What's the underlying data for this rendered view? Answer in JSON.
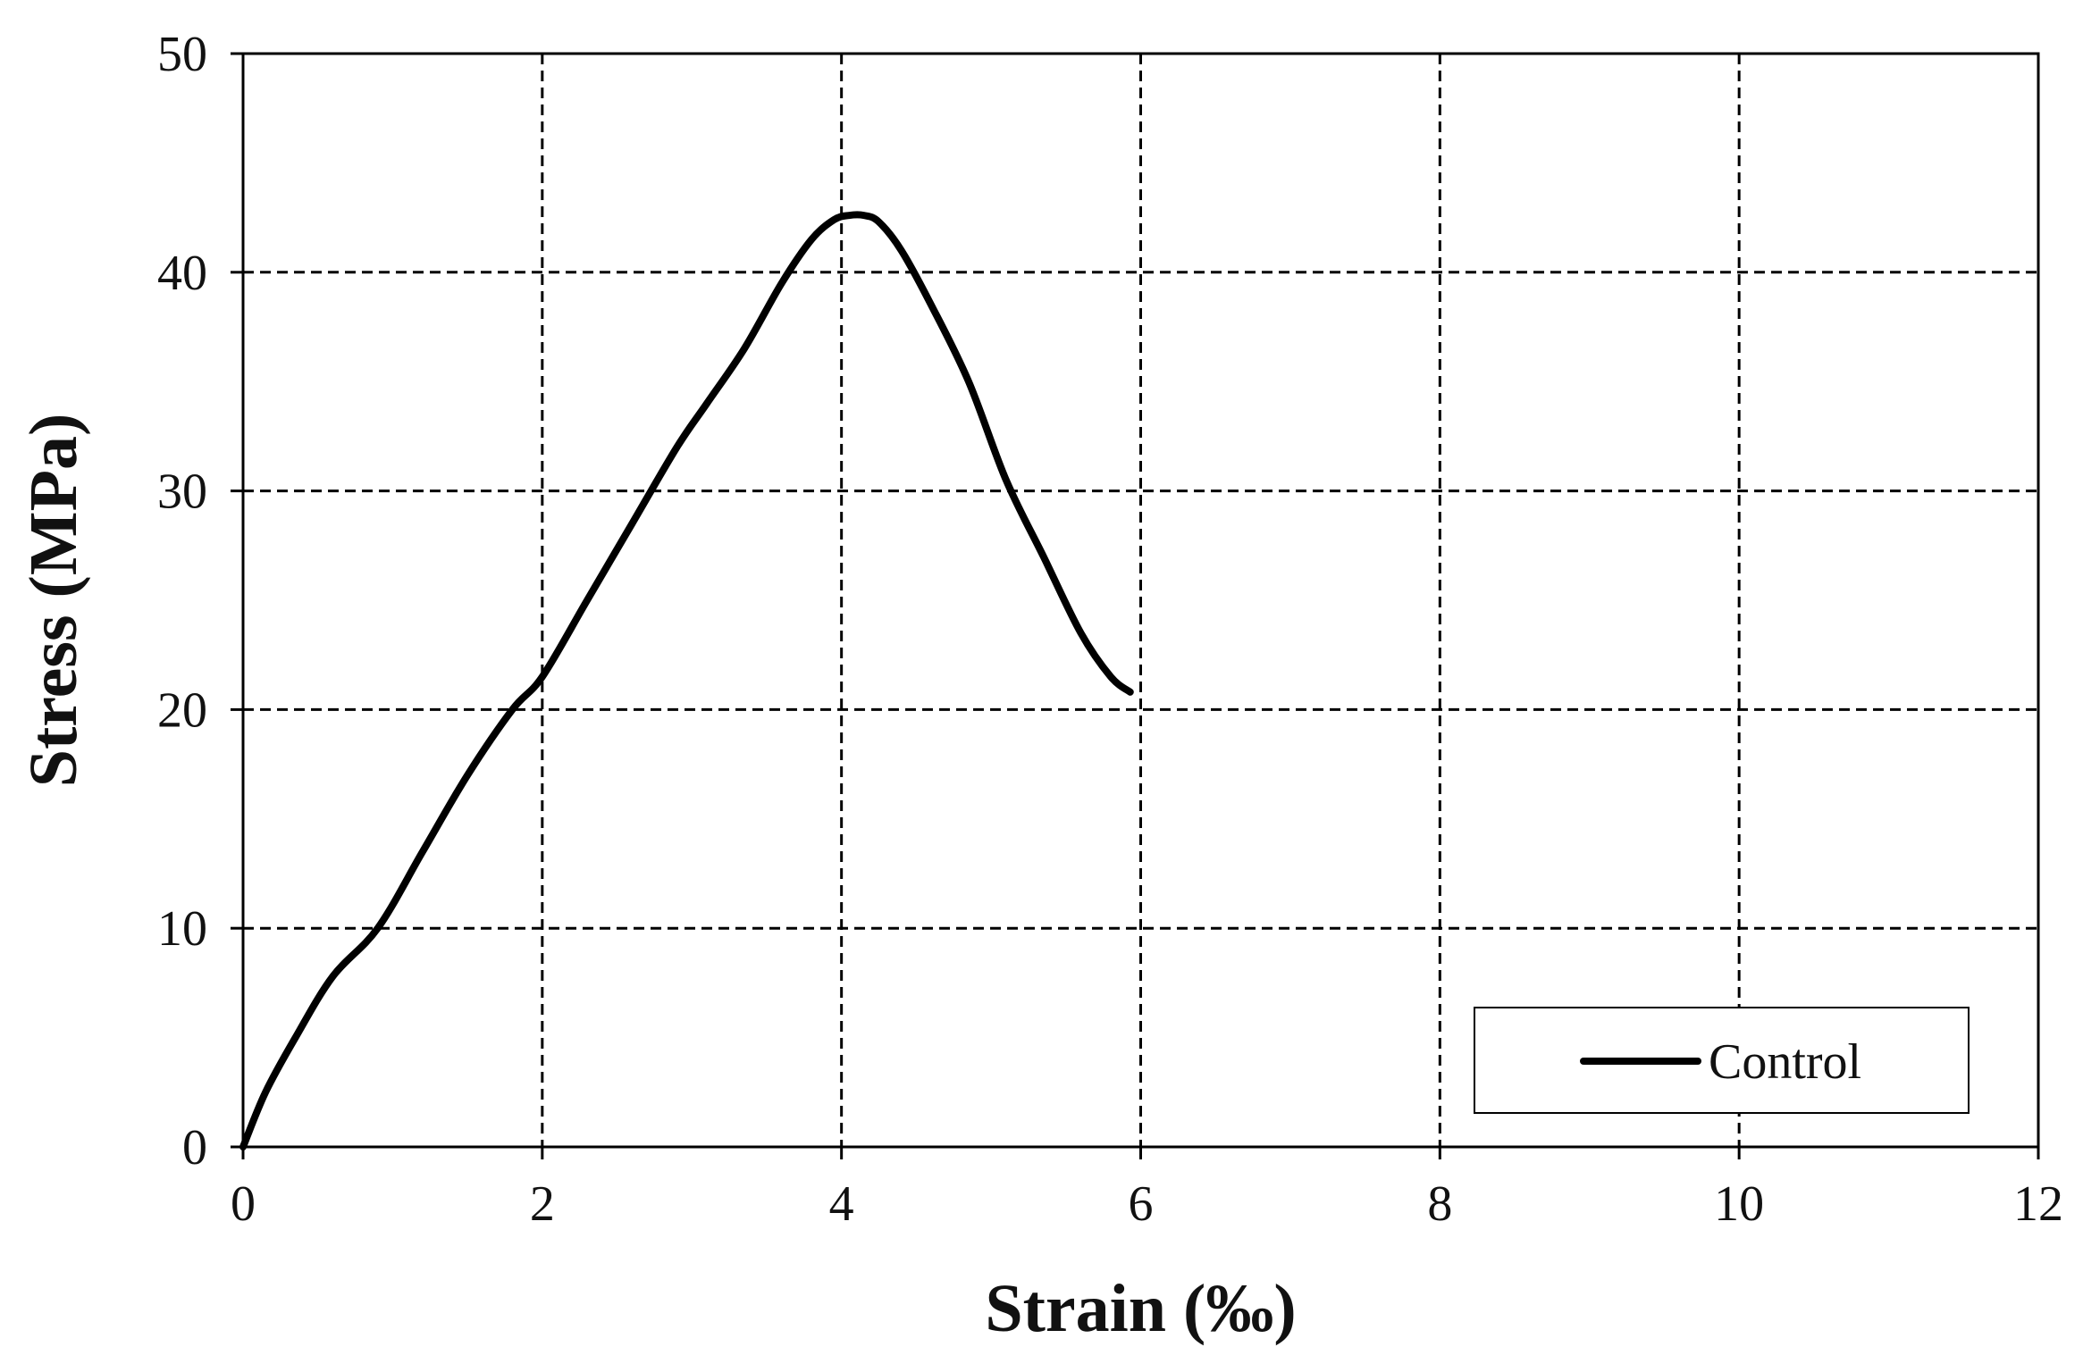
{
  "chart_data": {
    "type": "line",
    "xlabel": "Strain (‰)",
    "ylabel": "Stress (MPa)",
    "xlim": [
      0,
      12
    ],
    "ylim": [
      0,
      50
    ],
    "xticks": [
      0,
      2,
      4,
      6,
      8,
      10,
      12
    ],
    "yticks": [
      0,
      10,
      20,
      30,
      40,
      50
    ],
    "grid": true,
    "legend_position": "bottom-right",
    "series": [
      {
        "name": "Control",
        "color": "#000000",
        "x": [
          0,
          0.15,
          0.35,
          0.6,
          0.9,
          1.2,
          1.5,
          1.8,
          2.0,
          2.3,
          2.6,
          2.9,
          3.1,
          3.35,
          3.6,
          3.8,
          3.95,
          4.05,
          4.15,
          4.25,
          4.4,
          4.6,
          4.85,
          5.1,
          5.35,
          5.6,
          5.8,
          5.93
        ],
        "y": [
          0,
          2.5,
          5.0,
          7.8,
          10.0,
          13.5,
          17.0,
          20.0,
          21.5,
          25.0,
          28.5,
          32.0,
          34.0,
          36.5,
          39.5,
          41.5,
          42.4,
          42.6,
          42.6,
          42.3,
          41.0,
          38.5,
          35.0,
          30.5,
          27.0,
          23.5,
          21.5,
          20.8
        ]
      }
    ]
  }
}
